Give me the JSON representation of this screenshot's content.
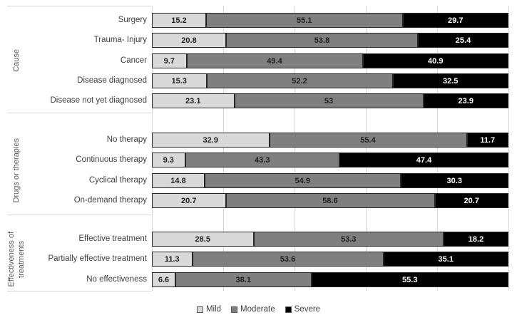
{
  "chart_data": {
    "type": "bar",
    "orientation": "horizontal",
    "stacked": true,
    "title": "",
    "xlabel": "",
    "ylabel": "",
    "x_range": [
      0,
      100
    ],
    "gridline_step": 20,
    "grid": true,
    "legend_position": "bottom",
    "series": [
      {
        "name": "Mild",
        "color": "#d9d9d9",
        "label_color": "#1f1f1f"
      },
      {
        "name": "Moderate",
        "color": "#7f7f7f",
        "label_color": "#1f1f1f"
      },
      {
        "name": "Severe",
        "color": "#000000",
        "label_color": "#ffffff"
      }
    ],
    "groups": [
      {
        "label_lines": [
          "Cause"
        ],
        "rows": [
          {
            "category": "Surgery",
            "values": [
              15.2,
              55.1,
              29.7
            ]
          },
          {
            "category": "Trauma- Injury",
            "values": [
              20.8,
              53.8,
              25.4
            ]
          },
          {
            "category": "Cancer",
            "values": [
              9.7,
              49.4,
              40.9
            ]
          },
          {
            "category": "Disease diagnosed",
            "values": [
              15.3,
              52.2,
              32.5
            ]
          },
          {
            "category": "Disease not yet diagnosed",
            "values": [
              23.1,
              53,
              23.9
            ]
          }
        ]
      },
      {
        "label_lines": [
          "Drugs or therapies"
        ],
        "rows": [
          {
            "category": "No therapy",
            "values": [
              32.9,
              55.4,
              11.7
            ]
          },
          {
            "category": "Continuous therapy",
            "values": [
              9.3,
              43.3,
              47.4
            ]
          },
          {
            "category": "Cyclical therapy",
            "values": [
              14.8,
              54.9,
              30.3
            ]
          },
          {
            "category": "On-demand therapy",
            "values": [
              20.7,
              58.6,
              20.7
            ]
          }
        ]
      },
      {
        "label_lines": [
          "Effectiveness of",
          "treatments"
        ],
        "rows": [
          {
            "category": "Effective treatment",
            "values": [
              28.5,
              53.3,
              18.2
            ]
          },
          {
            "category": "Partially effective treatment",
            "values": [
              11.3,
              53.6,
              35.1
            ]
          },
          {
            "category": "No effectiveness",
            "values": [
              6.6,
              38.1,
              55.3
            ]
          }
        ]
      }
    ],
    "colors": {
      "gridline": "#d9d9d9",
      "divider": "#d9d9d9",
      "category_label": "#404040",
      "group_label": "#595959",
      "legend_text": "#404040",
      "segment_border": "#262626",
      "background": "#ffffff"
    }
  }
}
